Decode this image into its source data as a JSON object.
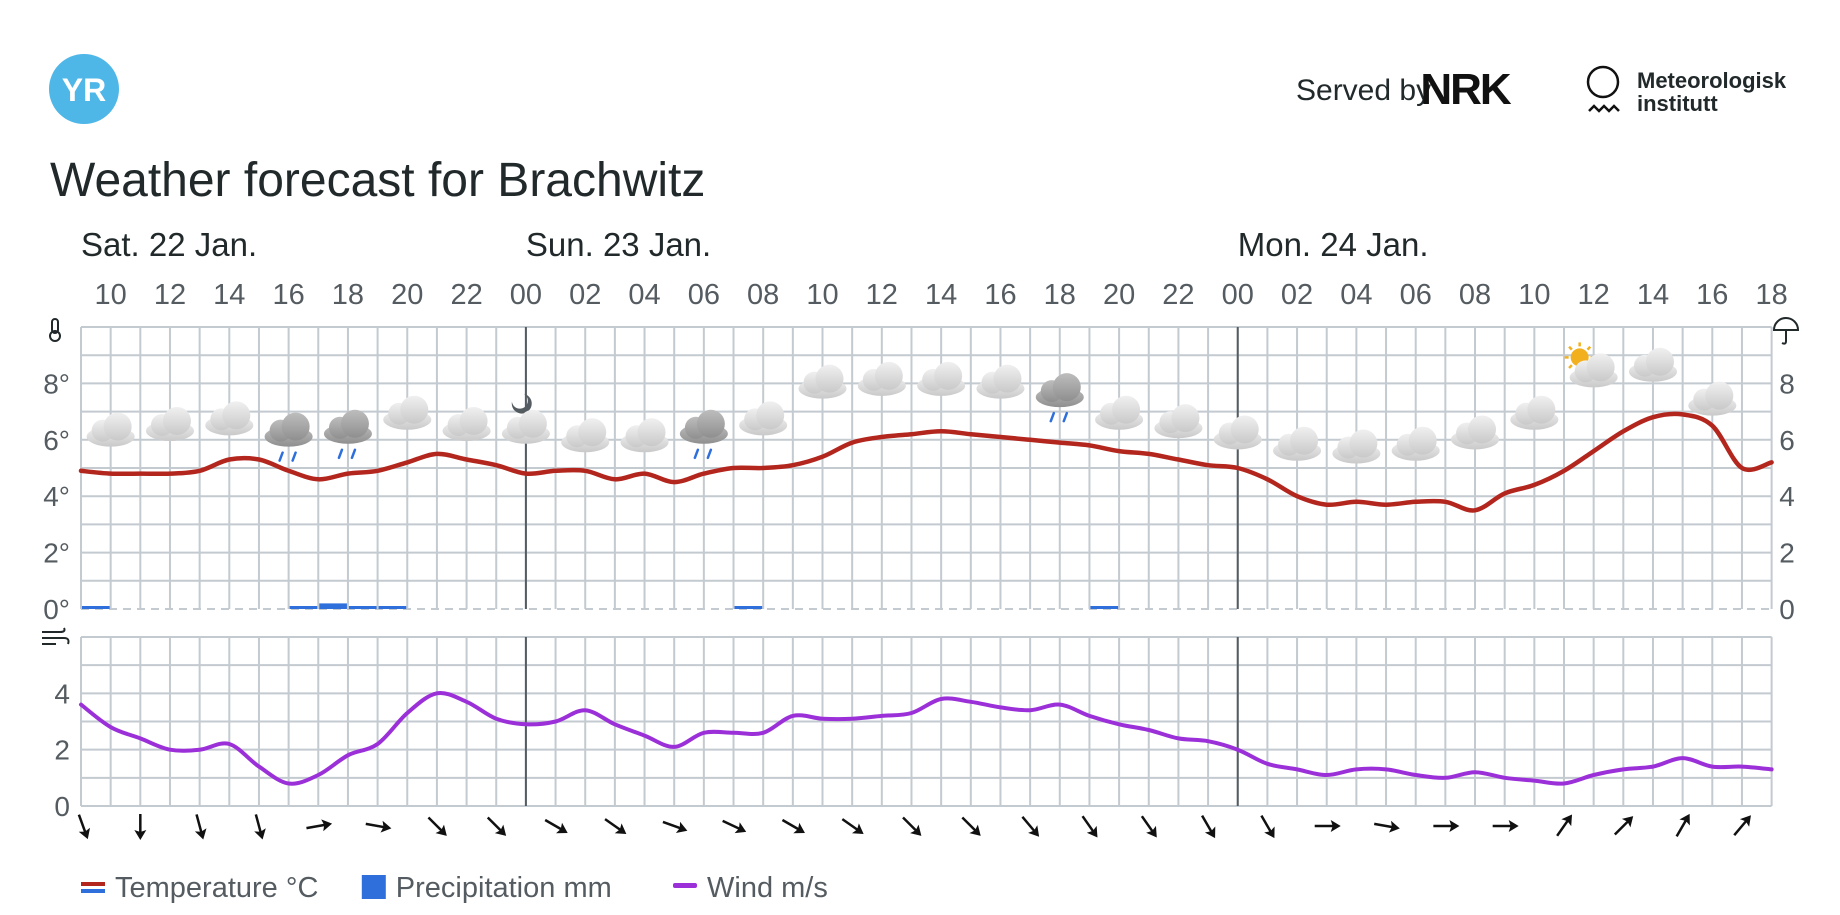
{
  "header": {
    "logo_text": "YR",
    "served_by": "Served by",
    "nrk_logo_text": "NRK",
    "met_line1": "Meteorologisk",
    "met_line2": "institutt",
    "title": "Weather forecast for Brachwitz"
  },
  "colors": {
    "temperature": "#b3261e",
    "precipitation": "#2f6fdc",
    "wind": "#9b30d9",
    "grid": "#c3cad0",
    "midnight": "#555c61",
    "logo": "#4fb6e8"
  },
  "icons": {
    "thermometer": "thermometer-icon",
    "umbrella": "umbrella-icon",
    "wind": "wind-icon"
  },
  "chart_data": {
    "type": "line",
    "days": [
      {
        "label": "Sat. 22 Jan.",
        "start_hour": 9
      },
      {
        "label": "Sun. 23 Jan.",
        "start_hour": 24
      },
      {
        "label": "Mon. 24 Jan.",
        "start_hour": 48
      }
    ],
    "hours": [
      9,
      10,
      11,
      12,
      13,
      14,
      15,
      16,
      17,
      18,
      19,
      20,
      21,
      22,
      23,
      24,
      25,
      26,
      27,
      28,
      29,
      30,
      31,
      32,
      33,
      34,
      35,
      36,
      37,
      38,
      39,
      40,
      41,
      42,
      43,
      44,
      45,
      46,
      47,
      48,
      49,
      50,
      51,
      52,
      53,
      54,
      55,
      56,
      57,
      58,
      59,
      60,
      61,
      62,
      63,
      64,
      65,
      66
    ],
    "tick_labels": [
      "10",
      "12",
      "14",
      "16",
      "18",
      "20",
      "22",
      "00",
      "02",
      "04",
      "06",
      "08",
      "10",
      "12",
      "14",
      "16",
      "18",
      "20",
      "22",
      "00",
      "02",
      "04",
      "06",
      "08",
      "10",
      "12",
      "14",
      "16",
      "18"
    ],
    "temperature": {
      "name": "Temperature °C",
      "unit": "°",
      "yticks": [
        "0°",
        "2°",
        "4°",
        "6°",
        "8°"
      ],
      "ylim": [
        0,
        10
      ],
      "values": [
        4.9,
        4.8,
        4.8,
        4.8,
        4.9,
        5.3,
        5.3,
        4.9,
        4.6,
        4.8,
        4.9,
        5.2,
        5.5,
        5.3,
        5.1,
        4.8,
        4.9,
        4.9,
        4.6,
        4.8,
        4.5,
        4.8,
        5.0,
        5.0,
        5.1,
        5.4,
        5.9,
        6.1,
        6.2,
        6.3,
        6.2,
        6.1,
        6.0,
        5.9,
        5.8,
        5.6,
        5.5,
        5.3,
        5.1,
        5.0,
        4.6,
        4.0,
        3.7,
        3.8,
        3.7,
        3.8,
        3.8,
        3.5,
        4.1,
        4.4,
        4.9,
        5.6,
        6.3,
        6.8,
        6.9,
        6.5,
        5.0,
        5.2
      ]
    },
    "precipitation": {
      "name": "Precipitation mm",
      "yticks": [
        "0",
        "2",
        "4",
        "6",
        "8"
      ],
      "values": [
        0.1,
        0,
        0,
        0,
        0,
        0,
        0,
        0.1,
        0.2,
        0.1,
        0.1,
        0,
        0,
        0,
        0,
        0,
        0,
        0,
        0,
        0,
        0,
        0,
        0.1,
        0,
        0,
        0,
        0,
        0,
        0,
        0,
        0,
        0,
        0,
        0,
        0.1,
        0,
        0,
        0,
        0,
        0,
        0,
        0,
        0,
        0,
        0,
        0,
        0,
        0,
        0,
        0,
        0,
        0,
        0,
        0,
        0,
        0,
        0,
        0
      ]
    },
    "wind": {
      "name": "Wind m/s",
      "yticks": [
        "0",
        "2",
        "4"
      ],
      "ylim": [
        0,
        6
      ],
      "values": [
        3.6,
        2.8,
        2.4,
        2.0,
        2.0,
        2.2,
        1.4,
        0.8,
        1.1,
        1.8,
        2.2,
        3.3,
        4.0,
        3.7,
        3.1,
        2.9,
        3.0,
        3.4,
        2.9,
        2.5,
        2.1,
        2.6,
        2.6,
        2.6,
        3.2,
        3.1,
        3.1,
        3.2,
        3.3,
        3.8,
        3.7,
        3.5,
        3.4,
        3.6,
        3.2,
        2.9,
        2.7,
        2.4,
        2.3,
        2.0,
        1.5,
        1.3,
        1.1,
        1.3,
        1.3,
        1.1,
        1.0,
        1.2,
        1.0,
        0.9,
        0.8,
        1.1,
        1.3,
        1.4,
        1.7,
        1.4,
        1.4,
        1.3
      ]
    },
    "wind_direction_arrows_deg": [
      160,
      180,
      165,
      165,
      80,
      100,
      135,
      135,
      120,
      125,
      110,
      115,
      120,
      125,
      135,
      135,
      140,
      145,
      145,
      150,
      150,
      90,
      100,
      90,
      90,
      35,
      45,
      30,
      40
    ],
    "weather_icons": [
      "cloud",
      "cloud",
      "cloud",
      "rain",
      "rain",
      "cloud",
      "cloud",
      "night-cloud",
      "cloud",
      "cloud",
      "rain",
      "cloud",
      "cloud",
      "cloud",
      "cloud",
      "cloud",
      "rain",
      "cloud",
      "cloud",
      "cloud",
      "cloud",
      "cloud",
      "cloud",
      "cloud",
      "cloud",
      "partly-sunny",
      "cloud",
      "cloud"
    ],
    "weather_icon_temps": [
      5.9,
      6.1,
      6.3,
      5.9,
      6.0,
      6.5,
      6.1,
      6.0,
      5.7,
      5.7,
      6.0,
      6.3,
      7.6,
      7.7,
      7.7,
      7.6,
      7.3,
      6.5,
      6.2,
      5.8,
      5.4,
      5.3,
      5.4,
      5.8,
      6.5,
      8.0,
      8.2,
      7.0
    ],
    "legend": [
      {
        "name": "Temperature °C",
        "type": "temperature"
      },
      {
        "name": "Precipitation mm",
        "type": "precipitation"
      },
      {
        "name": "Wind m/s",
        "type": "wind"
      }
    ]
  }
}
